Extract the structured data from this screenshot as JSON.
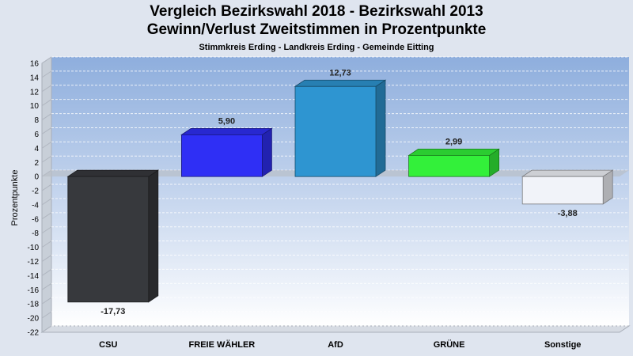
{
  "chart_data": {
    "type": "bar",
    "title": "Vergleich Bezirkswahl 2018 - Bezirkswahl 2013",
    "subtitle": "Gewinn/Verlust Zweitstimmen in Prozentpunkte",
    "caption": "Stimmkreis Erding - Landkreis Erding - Gemeinde Eitting",
    "ylabel": "Prozentpunkte",
    "xlabel": "",
    "categories": [
      "CSU",
      "FREIE WÄHLER",
      "AfD",
      "GRÜNE",
      "Sonstige"
    ],
    "values": [
      -17.73,
      5.9,
      12.73,
      2.99,
      -3.88
    ],
    "value_labels": [
      "-17,73",
      "5,90",
      "12,73",
      "2,99",
      "-3,88"
    ],
    "colors": [
      "#37393d",
      "#2f2ff5",
      "#2e95d1",
      "#33f03a",
      "#f1f3f9"
    ],
    "ylim": [
      -22,
      16
    ],
    "yticks": [
      16,
      14,
      12,
      10,
      8,
      6,
      4,
      2,
      0,
      -2,
      -4,
      -6,
      -8,
      -10,
      -12,
      -14,
      -16,
      -18,
      -20,
      -22
    ],
    "grid": true,
    "legend": "none"
  }
}
